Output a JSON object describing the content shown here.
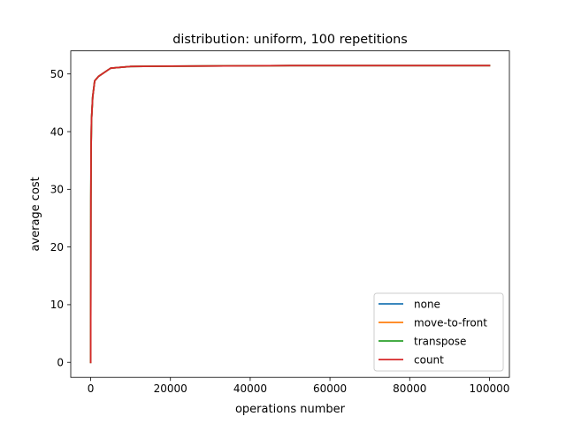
{
  "chart_data": {
    "type": "line",
    "title": "distribution: uniform, 100 repetitions",
    "xlabel": "operations number",
    "ylabel": "average cost",
    "xlim": [
      -5000,
      105000
    ],
    "ylim": [
      -2.6,
      54.0
    ],
    "xticks": [
      0,
      20000,
      40000,
      60000,
      80000,
      100000
    ],
    "xtick_labels": [
      "0",
      "20000",
      "40000",
      "60000",
      "80000",
      "100000"
    ],
    "yticks": [
      0,
      10,
      20,
      30,
      40,
      50
    ],
    "ytick_labels": [
      "0",
      "10",
      "20",
      "30",
      "40",
      "50"
    ],
    "grid": false,
    "legend_position": "lower right",
    "series": [
      {
        "name": "none",
        "color": "#1f77b4",
        "x": [
          1,
          10,
          50,
          100,
          200,
          500,
          1000,
          2000,
          5000,
          10000,
          20000,
          50000,
          100000
        ],
        "y": [
          0,
          6,
          28,
          37,
          42,
          46,
          48.8,
          49.6,
          51.0,
          51.3,
          51.35,
          51.45,
          51.45
        ]
      },
      {
        "name": "move-to-front",
        "color": "#ff7f0e",
        "x": [
          1,
          10,
          50,
          100,
          200,
          500,
          1000,
          2000,
          5000,
          10000,
          20000,
          50000,
          100000
        ],
        "y": [
          0,
          6,
          28,
          37,
          42,
          46,
          48.8,
          49.6,
          51.0,
          51.3,
          51.35,
          51.45,
          51.45
        ]
      },
      {
        "name": "transpose",
        "color": "#2ca02c",
        "x": [
          1,
          10,
          50,
          100,
          200,
          500,
          1000,
          2000,
          5000,
          10000,
          20000,
          50000,
          100000
        ],
        "y": [
          0,
          6,
          28,
          37,
          42,
          46,
          48.8,
          49.6,
          51.0,
          51.3,
          51.35,
          51.45,
          51.45
        ]
      },
      {
        "name": "count",
        "color": "#d62728",
        "x": [
          1,
          10,
          50,
          100,
          200,
          500,
          1000,
          2000,
          5000,
          10000,
          20000,
          50000,
          100000
        ],
        "y": [
          0,
          6,
          28,
          37,
          42,
          46,
          48.8,
          49.6,
          51.0,
          51.3,
          51.35,
          51.45,
          51.45
        ]
      }
    ]
  }
}
